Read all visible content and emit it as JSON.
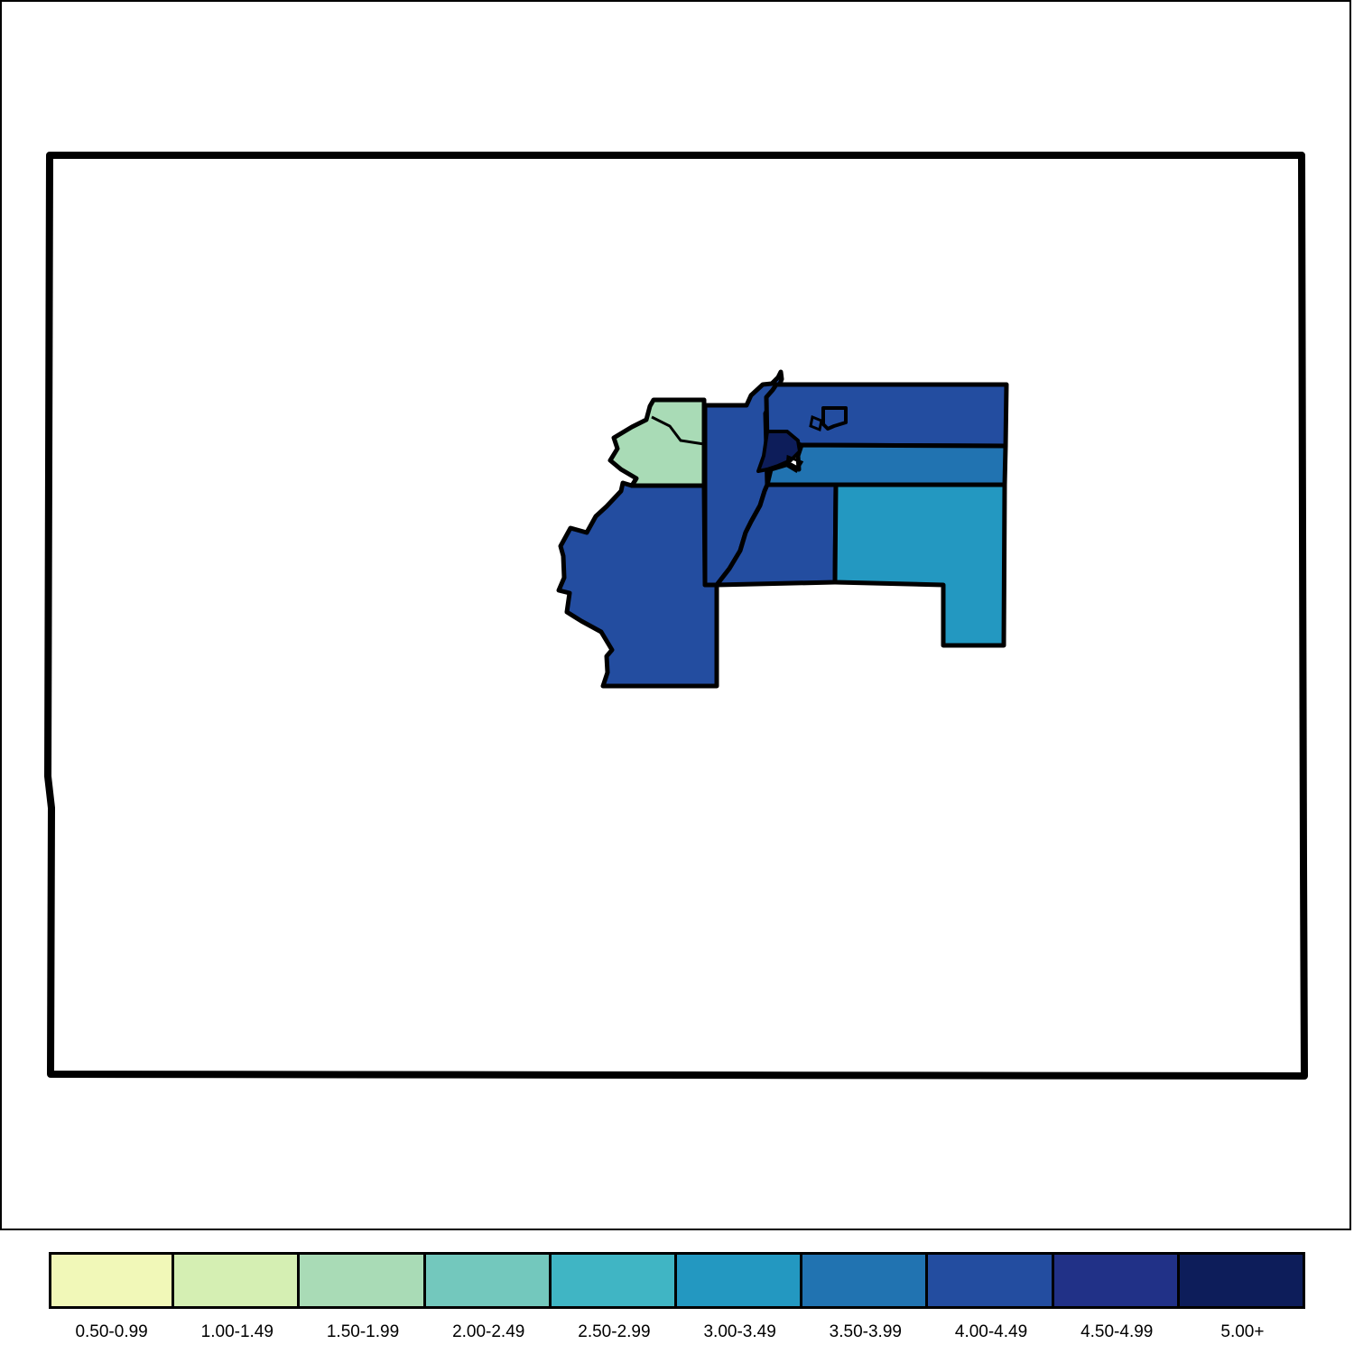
{
  "map": {
    "legend": {
      "classes": [
        {
          "label": "0.50-0.99",
          "color": "#f1f8b8"
        },
        {
          "label": "1.00-1.49",
          "color": "#d5efb3"
        },
        {
          "label": "1.50-1.99",
          "color": "#a9dbb6"
        },
        {
          "label": "2.00-2.49",
          "color": "#73c8bd"
        },
        {
          "label": "2.50-2.99",
          "color": "#40b5c4"
        },
        {
          "label": "3.00-3.49",
          "color": "#2398c1"
        },
        {
          "label": "3.50-3.99",
          "color": "#2173b1"
        },
        {
          "label": "4.00-4.49",
          "color": "#234da0"
        },
        {
          "label": "4.50-4.99",
          "color": "#213187"
        },
        {
          "label": "5.00+",
          "color": "#0d1d5a"
        }
      ]
    },
    "regions": [
      {
        "id": "north-west-region",
        "class": "1.50-1.99"
      },
      {
        "id": "south-west-region",
        "class": "4.00-4.49"
      },
      {
        "id": "central-strip-region",
        "class": "4.00-4.49"
      },
      {
        "id": "north-east-region",
        "class": "4.00-4.49"
      },
      {
        "id": "middle-east-band-region",
        "class": "3.50-3.99"
      },
      {
        "id": "central-south-region",
        "class": "4.00-4.49"
      },
      {
        "id": "south-east-region",
        "class": "3.00-3.49"
      },
      {
        "id": "small-core-region",
        "class": "5.00+"
      },
      {
        "id": "small-island-region",
        "class": "4.00-4.49"
      }
    ]
  }
}
